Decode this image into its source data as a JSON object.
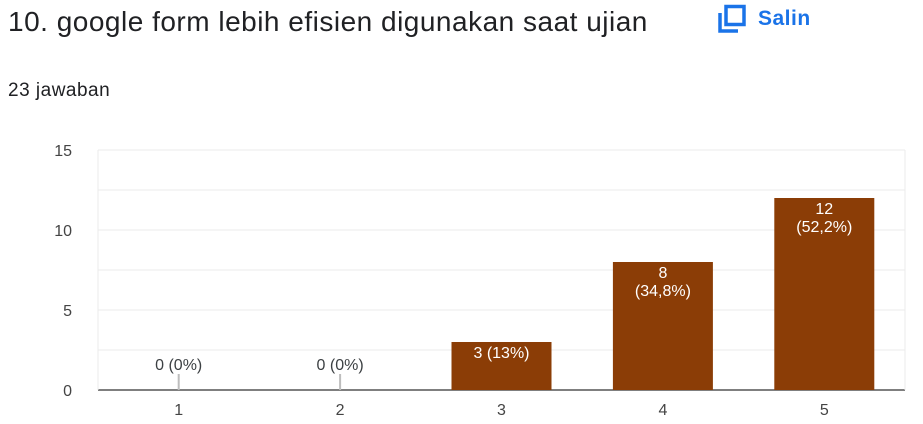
{
  "question": {
    "title": "10. google form lebih efisien digunakan saat ujian",
    "responses": "23 jawaban"
  },
  "toolbar": {
    "copy_label": "Salin",
    "copy_icon": "copy-icon"
  },
  "colors": {
    "bar": "#8b3d06",
    "accent": "#1a73e8",
    "grid": "#ebebeb",
    "axis": "#bdbdbd"
  },
  "chart_data": {
    "type": "bar",
    "categories": [
      "1",
      "2",
      "3",
      "4",
      "5"
    ],
    "values": [
      0,
      0,
      3,
      8,
      12
    ],
    "labels": [
      "0 (0%)",
      "0 (0%)",
      "3 (13%)",
      "8\n(34,8%)",
      "12\n(52,2%)"
    ],
    "ylim": [
      0,
      15
    ],
    "yticks": [
      0,
      5,
      10,
      15
    ],
    "grid": true,
    "title": "",
    "xlabel": "",
    "ylabel": ""
  }
}
